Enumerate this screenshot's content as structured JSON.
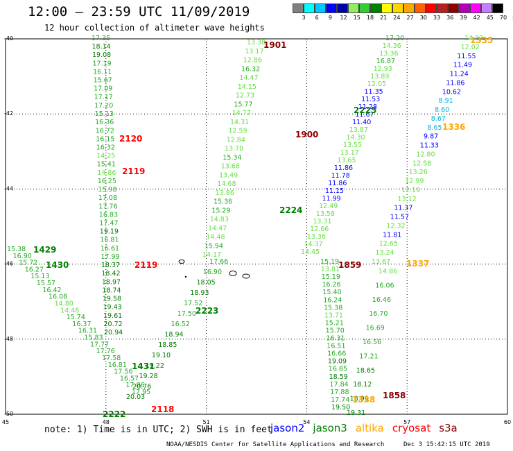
{
  "header": {
    "title": "12:00 – 23:59 UTC 11/09/2019",
    "subtitle": "12 hour collection of altimeter wave heights"
  },
  "legend": {
    "unit": "(ft)",
    "colors": [
      "#7f7f7f",
      "#00ffff",
      "#00c8ff",
      "#0000ff",
      "#0000a0",
      "#90ee60",
      "#32cd32",
      "#008000",
      "#ffff00",
      "#ffd700",
      "#ffa500",
      "#ff6000",
      "#ff0000",
      "#b22222",
      "#8b0000",
      "#b000b0",
      "#ff00ff",
      "#c080ff",
      "#000000"
    ],
    "labels": [
      "3",
      "6",
      "9",
      "12",
      "15",
      "18",
      "21",
      "24",
      "27",
      "30",
      "33",
      "36",
      "39",
      "42",
      "45",
      "70"
    ]
  },
  "axes": {
    "lon_labels": [
      "45",
      "48",
      "51",
      "54",
      "57",
      "60"
    ],
    "lat_labels": [
      "-40",
      "-42",
      "-44",
      "-46",
      "-48",
      "-50"
    ]
  },
  "passes": [
    {
      "label": "1901",
      "color": "#8b0000"
    },
    {
      "label": "1335",
      "color": "#ffa500"
    },
    {
      "label": "2225",
      "color": "#008000"
    },
    {
      "label": "2120",
      "color": "#ff0000"
    },
    {
      "label": "1900",
      "color": "#8b0000"
    },
    {
      "label": "1336",
      "color": "#ffa500"
    },
    {
      "label": "2119",
      "color": "#ff0000"
    },
    {
      "label": "2224",
      "color": "#008000"
    },
    {
      "label": "1429",
      "color": "#008000"
    },
    {
      "label": "1430",
      "color": "#008000"
    },
    {
      "label": "2119",
      "color": "#ff0000"
    },
    {
      "label": "1859",
      "color": "#8b0000"
    },
    {
      "label": "1337",
      "color": "#ffa500"
    },
    {
      "label": "2223",
      "color": "#008000"
    },
    {
      "label": "1431",
      "color": "#008000"
    },
    {
      "label": "1858",
      "color": "#8b0000"
    },
    {
      "label": "1338",
      "color": "#ffa500"
    },
    {
      "label": "2118",
      "color": "#ff0000"
    },
    {
      "label": "2222",
      "color": "#008000"
    }
  ],
  "tracks": [
    {
      "name": "pass-2120-2119-west",
      "color_range": "green",
      "values": [
        "17.35",
        "18.14",
        "19.08",
        "17.19",
        "16.11",
        "15.67",
        "17.09",
        "17.17",
        "17.20",
        "15.13",
        "16.36",
        "16.72",
        "16.15",
        "16.32",
        "14.25",
        "15.41",
        "14.86",
        "16.25",
        "15.98",
        "17.08",
        "17.76",
        "16.83",
        "17.47",
        "19.19",
        "16.81",
        "16.61",
        "17.99",
        "18.37",
        "18.42",
        "18.97",
        "18.74",
        "19.58",
        "19.43",
        "19.61",
        "20.72",
        "20.94"
      ]
    },
    {
      "name": "pass-1429-1431",
      "color_range": "green",
      "values": [
        "15.38",
        "16.90",
        "15.72",
        "16.27",
        "15.13",
        "15.57",
        "16.42",
        "16.08",
        "14.80",
        "14.46",
        "15.74",
        "16.37",
        "16.31",
        "15.83",
        "17.77",
        "17.76",
        "17.58",
        "16.81",
        "17.56",
        "16.57",
        "17.86",
        "17.95"
      ]
    },
    {
      "name": "pass-2223-2222",
      "color_range": "green",
      "values": [
        "17.66",
        "16.90",
        "18.05",
        "18.93",
        "17.52",
        "17.50",
        "16.52",
        "18.94",
        "18.85",
        "19.10",
        "19.22",
        "19.28",
        "20.76",
        "20.03"
      ]
    },
    {
      "name": "pass-1901-1859",
      "color_range": "green",
      "values": [
        "13.38",
        "13.17",
        "12.86",
        "16.32",
        "14.47",
        "14.15",
        "12.73",
        "15.77",
        "14.77",
        "14.31",
        "12.59",
        "12.84",
        "13.70",
        "15.34",
        "13.68",
        "13.49",
        "14.68",
        "13.86",
        "15.36",
        "15.29",
        "14.83",
        "14.47",
        "14.48",
        "15.94",
        "14.17"
      ]
    },
    {
      "name": "pass-2225-2224",
      "color_range": "green",
      "values": [
        "17.20",
        "14.36",
        "13.36",
        "16.87",
        "12.93",
        "13.89",
        "12.05",
        "11.35",
        "11.53",
        "11.28",
        "11.67",
        "11.40",
        "13.87",
        "14.30",
        "13.55",
        "13.17",
        "13.65",
        "11.86",
        "11.78",
        "11.86",
        "11.15",
        "11.99",
        "12.49",
        "13.58",
        "13.31",
        "12.66",
        "13.36",
        "14.37",
        "14.45"
      ]
    },
    {
      "name": "pass-1335-1337",
      "color_range": "blue",
      "values": [
        "14.03",
        "12.02",
        "11.55",
        "11.49",
        "11.24",
        "11.86",
        "10.62",
        "8.91",
        "8.60",
        "8.67",
        "8.65",
        "9.87",
        "11.33",
        "12.80",
        "12.58",
        "13.26",
        "12.99",
        "12.19",
        "13.12",
        "11.37",
        "11.57",
        "12.32",
        "11.81",
        "12.65",
        "13.24",
        "13.67"
      ]
    },
    {
      "name": "pass-1859-1858",
      "color_range": "green",
      "values": [
        "15.19",
        "13.81",
        "15.19",
        "16.26",
        "15.40",
        "16.24",
        "15.38",
        "13.71",
        "15.21",
        "15.70",
        "16.31",
        "16.51",
        "16.66",
        "19.09",
        "16.85",
        "18.59",
        "17.84",
        "17.88",
        "17.74",
        "19.50"
      ]
    },
    {
      "name": "pass-1337-1338",
      "color_range": "green",
      "values": [
        "14.86",
        "16.06",
        "16.46",
        "16.70",
        "16.69",
        "16.56",
        "17.21",
        "18.65",
        "18.12",
        "18.99",
        "19.31"
      ]
    }
  ],
  "footer": {
    "note": "note: 1) Time is in UTC; 2) SWH is in feet",
    "satellites": [
      {
        "name": "jason2",
        "color": "#0000ff"
      },
      {
        "name": "jason3",
        "color": "#008000"
      },
      {
        "name": "altika",
        "color": "#ffa500"
      },
      {
        "name": "cryosat",
        "color": "#ff0000"
      },
      {
        "name": "s3a",
        "color": "#8b0000"
      }
    ],
    "credit": "NOAA/NESDIS Center for Satellite Applications and Research",
    "timestamp": "Dec  3 15:42:15 UTC 2019"
  }
}
